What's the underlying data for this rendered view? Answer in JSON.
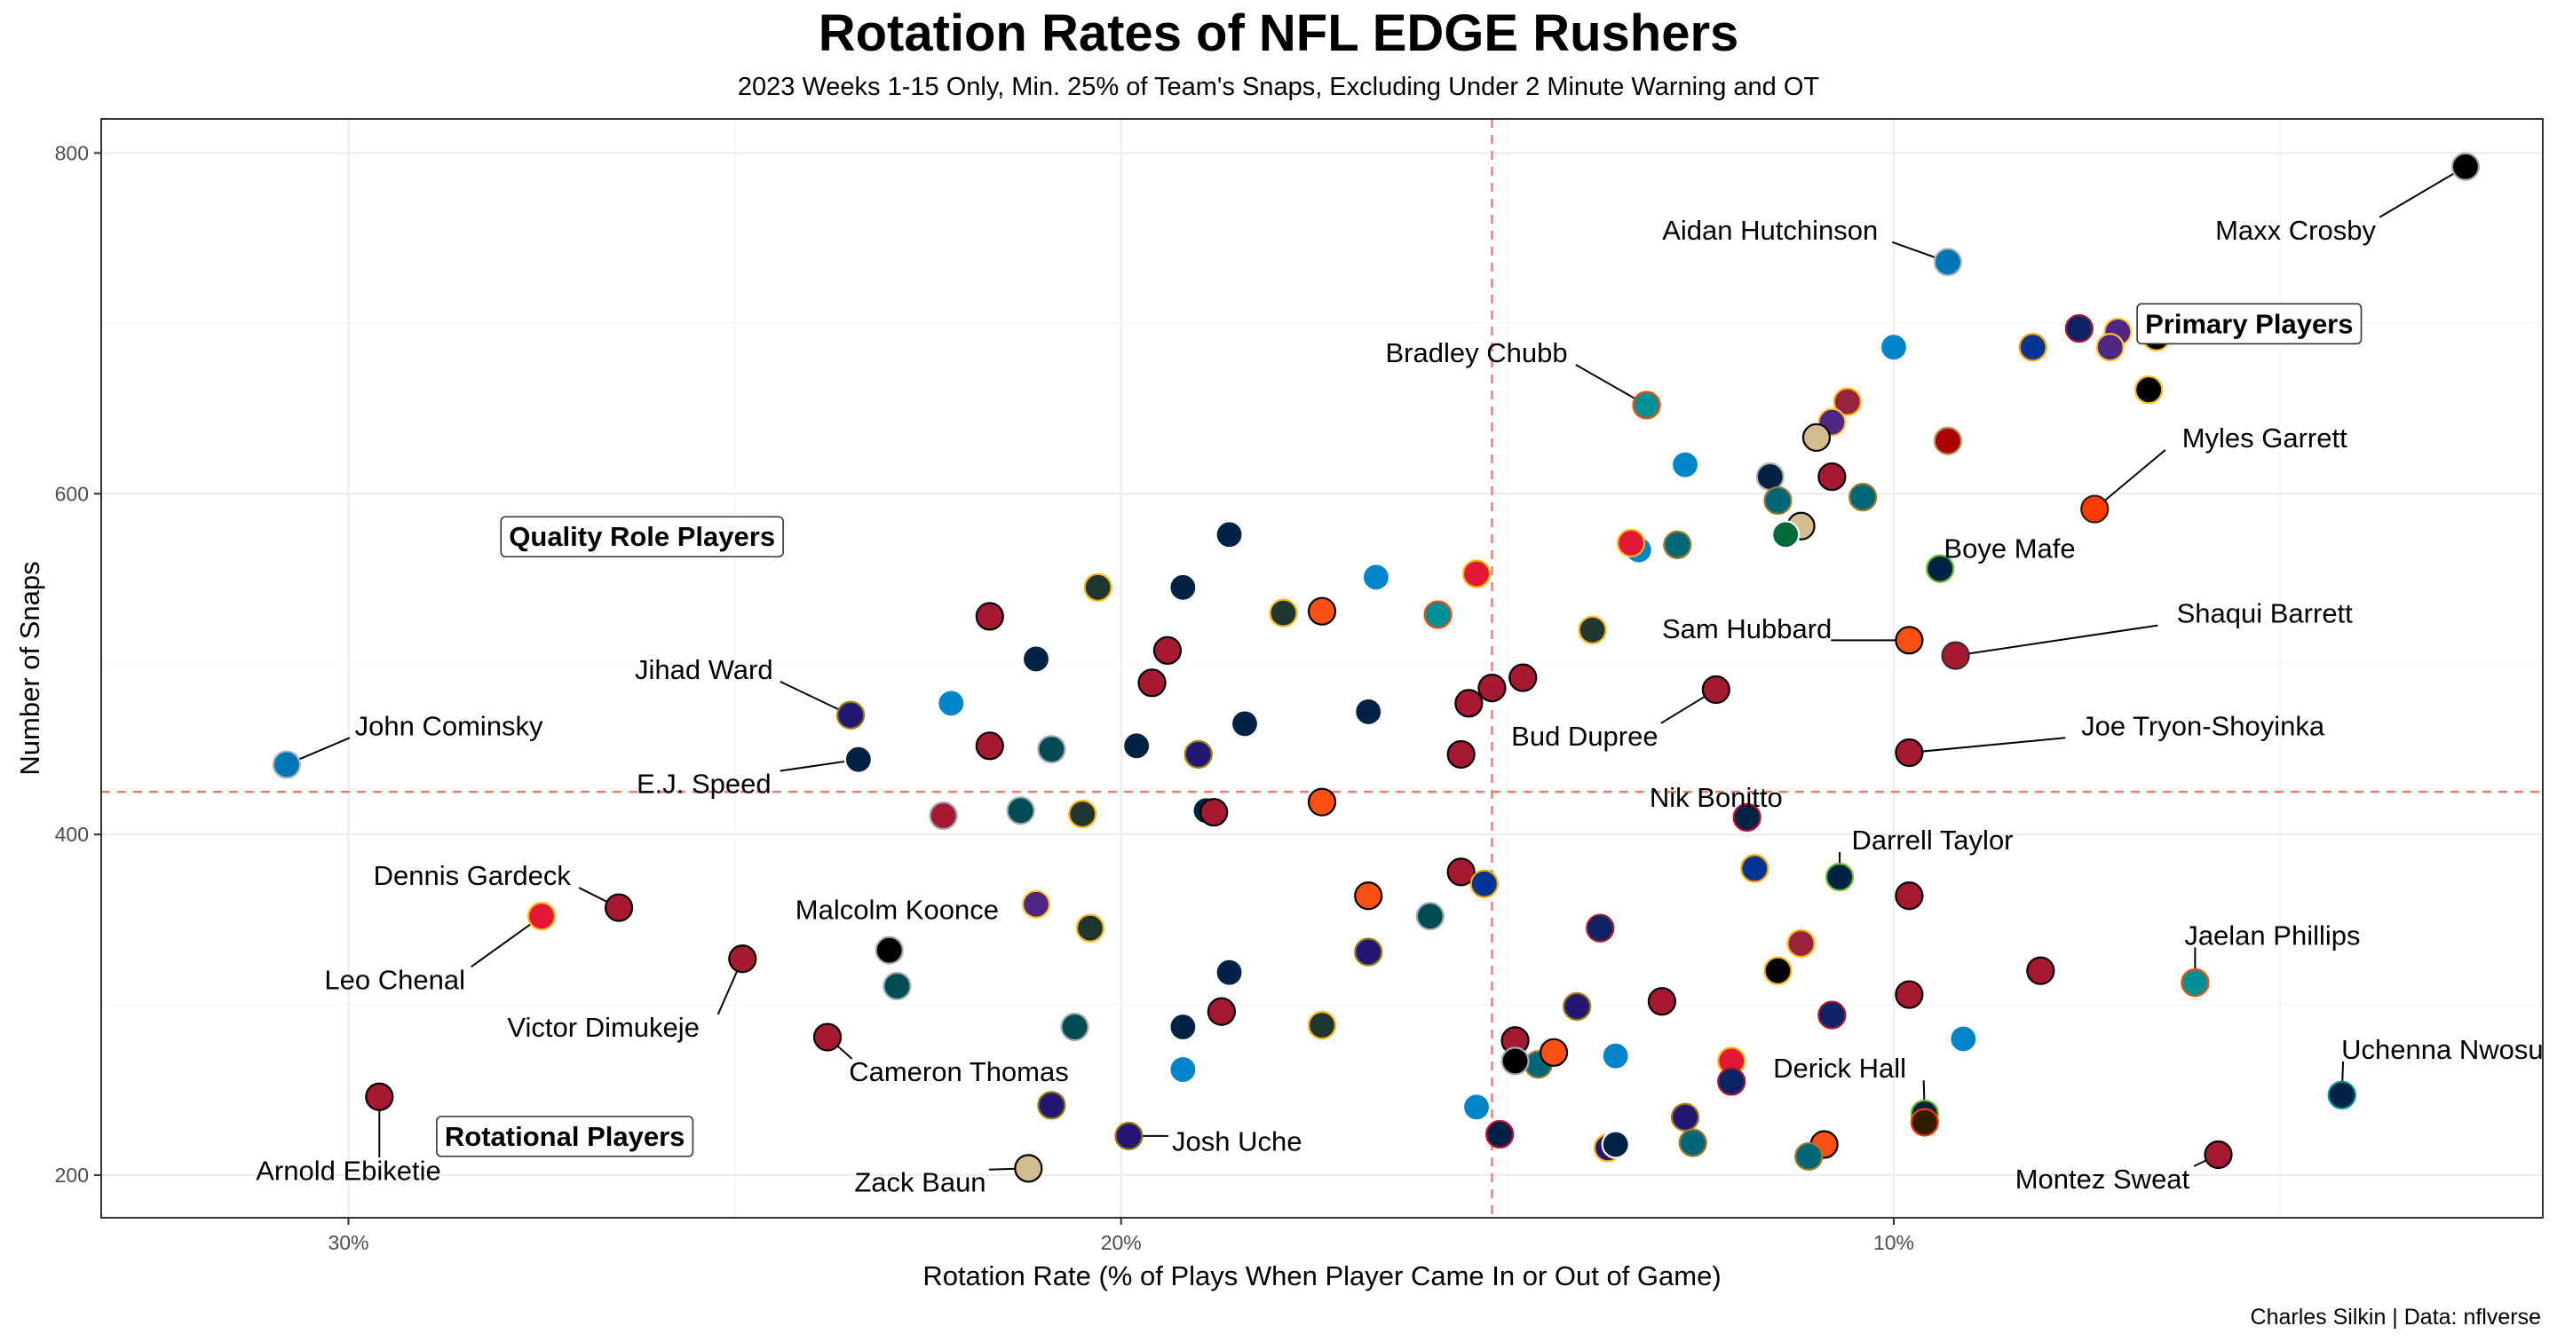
{
  "title": "Rotation Rates of NFL EDGE Rushers",
  "subtitle": "2023 Weeks 1-15 Only, Min. 25% of Team's Snaps, Excluding Under 2 Minute Warning and OT",
  "caption": "Charles Silkin | Data: nflverse",
  "chart_data": {
    "type": "scatter",
    "xlabel": "Rotation Rate (% of Plays When Player Came In or Out of Game)",
    "ylabel": "Number of Snaps",
    "x_reversed": true,
    "xlim": [
      33.2,
      1.6
    ],
    "ylim": [
      175,
      820
    ],
    "x_ticks": [
      {
        "value": 30,
        "label": "30%"
      },
      {
        "value": 20,
        "label": "20%"
      },
      {
        "value": 10,
        "label": "10%"
      }
    ],
    "y_ticks": [
      {
        "value": 200,
        "label": "200"
      },
      {
        "value": 400,
        "label": "400"
      },
      {
        "value": 600,
        "label": "600"
      },
      {
        "value": 800,
        "label": "800"
      }
    ],
    "reference_lines": {
      "x": 15.2,
      "y": 425,
      "color": "#f8766d",
      "style": "dashed"
    },
    "grid": true,
    "quadrant_labels": [
      {
        "text": "Primary Players",
        "x": 5.4,
        "y": 700
      },
      {
        "text": "Quality Role Players",
        "x": 26.2,
        "y": 575
      },
      {
        "text": "Rotational Players",
        "x": 27.2,
        "y": 223
      }
    ],
    "points": [
      {
        "x": 2.6,
        "y": 792,
        "fill": "#000000",
        "stroke": "#a5acaf",
        "label": "Maxx Crosby",
        "lx": 4.8,
        "ly": 755,
        "anchor": "middle"
      },
      {
        "x": 9.3,
        "y": 736,
        "fill": "#0076b6",
        "stroke": "#b0b7bc",
        "label": "Aidan Hutchinson",
        "lx": 11.6,
        "ly": 755,
        "anchor": "middle"
      },
      {
        "x": 13.2,
        "y": 652,
        "fill": "#008e97",
        "stroke": "#fc4c02",
        "label": "Bradley Chubb",
        "lx": 15.4,
        "ly": 683,
        "anchor": "middle"
      },
      {
        "x": 7.4,
        "y": 591,
        "fill": "#ff3c00",
        "stroke": "#311d00",
        "label": "Myles Garrett",
        "lx": 5.2,
        "ly": 633,
        "anchor": "middle"
      },
      {
        "x": 9.4,
        "y": 556,
        "fill": "#002244",
        "stroke": "#69be28",
        "label": "Boye Mafe",
        "lx": 8.5,
        "ly": 568,
        "anchor": "middle"
      },
      {
        "x": 9.8,
        "y": 514,
        "fill": "#fb4f14",
        "stroke": "#000000",
        "label": "Sam Hubbard",
        "lx": 11.9,
        "ly": 521,
        "anchor": "middle"
      },
      {
        "x": 9.2,
        "y": 505,
        "fill": "#a71930",
        "stroke": "#322f2b",
        "label": "Shaqui Barrett",
        "lx": 5.2,
        "ly": 530,
        "anchor": "middle"
      },
      {
        "x": 12.3,
        "y": 485,
        "fill": "#a71930",
        "stroke": "#000000",
        "label": "Bud Dupree",
        "lx": 14.0,
        "ly": 458,
        "anchor": "middle"
      },
      {
        "x": 9.8,
        "y": 448,
        "fill": "#a71930",
        "stroke": "#000000",
        "label": "Joe Tryon-Shoyinka",
        "lx": 6.0,
        "ly": 464,
        "anchor": "middle"
      },
      {
        "x": 11.9,
        "y": 410,
        "fill": "#002244",
        "stroke": "#c60c30",
        "label": "Nik Bonitto",
        "lx": 12.3,
        "ly": 422,
        "anchor": "middle"
      },
      {
        "x": 10.7,
        "y": 375,
        "fill": "#002244",
        "stroke": "#69be28",
        "label": "Darrell Taylor",
        "lx": 9.5,
        "ly": 397,
        "anchor": "middle"
      },
      {
        "x": 6.1,
        "y": 313,
        "fill": "#008e97",
        "stroke": "#fc4c02",
        "label": "Jaelan Phillips",
        "lx": 5.1,
        "ly": 341,
        "anchor": "middle"
      },
      {
        "x": 4.2,
        "y": 247,
        "fill": "#002244",
        "stroke": "#008e97",
        "label": "Uchenna Nwosu",
        "lx": 2.9,
        "ly": 274,
        "anchor": "middle"
      },
      {
        "x": 9.6,
        "y": 236,
        "fill": "#002244",
        "stroke": "#69be28",
        "label": "Derick Hall",
        "lx": 10.7,
        "ly": 263,
        "anchor": "middle"
      },
      {
        "x": 5.8,
        "y": 212,
        "fill": "#a71930",
        "stroke": "#000000",
        "label": "Montez Sweat",
        "lx": 7.3,
        "ly": 198,
        "anchor": "middle"
      },
      {
        "x": 30.8,
        "y": 441,
        "fill": "#0076b6",
        "stroke": "#b0b7bc",
        "label": "John Cominsky",
        "lx": 28.7,
        "ly": 464,
        "anchor": "middle"
      },
      {
        "x": 23.5,
        "y": 470,
        "fill": "#241773",
        "stroke": "#9e7c0c",
        "label": "Jihad Ward",
        "lx": 25.4,
        "ly": 497,
        "anchor": "middle"
      },
      {
        "x": 23.4,
        "y": 444,
        "fill": "#002244",
        "stroke": "#ffffff",
        "label": "E.J. Speed",
        "lx": 25.4,
        "ly": 430,
        "anchor": "middle"
      },
      {
        "x": 26.5,
        "y": 357,
        "fill": "#a71930",
        "stroke": "#000000",
        "label": "Dennis Gardeck",
        "lx": 28.4,
        "ly": 376,
        "anchor": "middle"
      },
      {
        "x": 27.5,
        "y": 352,
        "fill": "#e31837",
        "stroke": "#ffb612",
        "label": "Leo Chenal",
        "lx": 29.4,
        "ly": 315,
        "anchor": "middle"
      },
      {
        "x": 23.0,
        "y": 332,
        "fill": "#000000",
        "stroke": "#a5acaf",
        "label": "Malcolm Koonce",
        "lx": 22.9,
        "ly": 356,
        "anchor": "middle"
      },
      {
        "x": 24.9,
        "y": 327,
        "fill": "#a71930",
        "stroke": "#000000",
        "label": "Victor Dimukeje",
        "lx": 26.7,
        "ly": 287,
        "anchor": "middle"
      },
      {
        "x": 23.8,
        "y": 281,
        "fill": "#a71930",
        "stroke": "#000000",
        "label": "Cameron Thomas",
        "lx": 22.1,
        "ly": 261,
        "anchor": "middle"
      },
      {
        "x": 29.6,
        "y": 246,
        "fill": "#a71930",
        "stroke": "#000000",
        "label": "Arnold Ebiketie",
        "lx": 30.0,
        "ly": 203,
        "anchor": "middle"
      },
      {
        "x": 19.9,
        "y": 223,
        "fill": "#241773",
        "stroke": "#9e7c0c",
        "label": "Josh Uche",
        "lx": 18.5,
        "ly": 220,
        "anchor": "middle"
      },
      {
        "x": 21.2,
        "y": 204,
        "fill": "#d3bc8d",
        "stroke": "#000000",
        "label": "Zack Baun",
        "lx": 22.6,
        "ly": 196,
        "anchor": "middle"
      },
      {
        "x": 7.1,
        "y": 695,
        "fill": "#4f2683",
        "stroke": "#ffc62f"
      },
      {
        "x": 6.6,
        "y": 692,
        "fill": "#000000",
        "stroke": "#ffb612"
      },
      {
        "x": 7.2,
        "y": 686,
        "fill": "#4f2683",
        "stroke": "#ffc62f"
      },
      {
        "x": 7.6,
        "y": 697,
        "fill": "#0b2265",
        "stroke": "#a71930"
      },
      {
        "x": 8.2,
        "y": 686,
        "fill": "#003594",
        "stroke": "#ffa300"
      },
      {
        "x": 10.0,
        "y": 686,
        "fill": "#0085ca",
        "stroke": "#ffffff"
      },
      {
        "x": 6.7,
        "y": 661,
        "fill": "#000000",
        "stroke": "#ffb612"
      },
      {
        "x": 10.6,
        "y": 654,
        "fill": "#97233f",
        "stroke": "#ffb612"
      },
      {
        "x": 10.8,
        "y": 642,
        "fill": "#4f2683",
        "stroke": "#ffc62f"
      },
      {
        "x": 11.0,
        "y": 633,
        "fill": "#d3bc8d",
        "stroke": "#000000"
      },
      {
        "x": 9.3,
        "y": 631,
        "fill": "#aa0000",
        "stroke": "#b3995d"
      },
      {
        "x": 12.7,
        "y": 617,
        "fill": "#0085ca",
        "stroke": "#ffffff"
      },
      {
        "x": 11.6,
        "y": 610,
        "fill": "#002244",
        "stroke": "#b0b7bc"
      },
      {
        "x": 10.8,
        "y": 610,
        "fill": "#a71930",
        "stroke": "#000000"
      },
      {
        "x": 11.5,
        "y": 596,
        "fill": "#006778",
        "stroke": "#9f792c"
      },
      {
        "x": 10.4,
        "y": 598,
        "fill": "#006778",
        "stroke": "#9f792c"
      },
      {
        "x": 11.2,
        "y": 581,
        "fill": "#d3bc8d",
        "stroke": "#000000"
      },
      {
        "x": 11.4,
        "y": 576,
        "fill": "#046a38",
        "stroke": "#ffffff"
      },
      {
        "x": 12.8,
        "y": 570,
        "fill": "#006778",
        "stroke": "#9f792c"
      },
      {
        "x": 13.3,
        "y": 567,
        "fill": "#0085ca",
        "stroke": "#ffffff"
      },
      {
        "x": 13.4,
        "y": 571,
        "fill": "#e31837",
        "stroke": "#ffb612"
      },
      {
        "x": 18.6,
        "y": 576,
        "fill": "#002244",
        "stroke": "#ffffff"
      },
      {
        "x": 15.4,
        "y": 553,
        "fill": "#e31837",
        "stroke": "#ffb612"
      },
      {
        "x": 16.7,
        "y": 551,
        "fill": "#0085ca",
        "stroke": "#ffffff"
      },
      {
        "x": 19.2,
        "y": 545,
        "fill": "#002244",
        "stroke": "#ffffff"
      },
      {
        "x": 20.3,
        "y": 545,
        "fill": "#203731",
        "stroke": "#ffb612"
      },
      {
        "x": 15.9,
        "y": 529,
        "fill": "#008e97",
        "stroke": "#fc4c02"
      },
      {
        "x": 17.4,
        "y": 531,
        "fill": "#fb4f14",
        "stroke": "#000000"
      },
      {
        "x": 17.9,
        "y": 530,
        "fill": "#203731",
        "stroke": "#ffb612"
      },
      {
        "x": 21.7,
        "y": 528,
        "fill": "#a71930",
        "stroke": "#000000"
      },
      {
        "x": 13.9,
        "y": 520,
        "fill": "#203731",
        "stroke": "#ffb612"
      },
      {
        "x": 21.1,
        "y": 503,
        "fill": "#002244",
        "stroke": "#ffffff"
      },
      {
        "x": 19.4,
        "y": 508,
        "fill": "#a71930",
        "stroke": "#000000"
      },
      {
        "x": 19.6,
        "y": 489,
        "fill": "#a71930",
        "stroke": "#000000"
      },
      {
        "x": 14.8,
        "y": 492,
        "fill": "#a71930",
        "stroke": "#000000"
      },
      {
        "x": 15.2,
        "y": 486,
        "fill": "#a71930",
        "stroke": "#000000"
      },
      {
        "x": 15.5,
        "y": 477,
        "fill": "#a71930",
        "stroke": "#000000"
      },
      {
        "x": 22.2,
        "y": 477,
        "fill": "#0085ca",
        "stroke": "#ffffff"
      },
      {
        "x": 16.8,
        "y": 472,
        "fill": "#002244",
        "stroke": "#ffffff"
      },
      {
        "x": 18.4,
        "y": 465,
        "fill": "#002244",
        "stroke": "#ffffff"
      },
      {
        "x": 21.7,
        "y": 452,
        "fill": "#a71930",
        "stroke": "#000000"
      },
      {
        "x": 20.9,
        "y": 450,
        "fill": "#004c54",
        "stroke": "#a5acaf"
      },
      {
        "x": 19.8,
        "y": 452,
        "fill": "#002244",
        "stroke": "#ffffff"
      },
      {
        "x": 19.0,
        "y": 447,
        "fill": "#241773",
        "stroke": "#9e7c0c"
      },
      {
        "x": 15.6,
        "y": 447,
        "fill": "#a71930",
        "stroke": "#000000"
      },
      {
        "x": 22.3,
        "y": 411,
        "fill": "#a71930",
        "stroke": "#a5acaf"
      },
      {
        "x": 21.3,
        "y": 414,
        "fill": "#004c54",
        "stroke": "#a5acaf"
      },
      {
        "x": 20.5,
        "y": 412,
        "fill": "#203731",
        "stroke": "#ffb612"
      },
      {
        "x": 18.9,
        "y": 414,
        "fill": "#002244",
        "stroke": "#ffffff"
      },
      {
        "x": 18.8,
        "y": 413,
        "fill": "#a71930",
        "stroke": "#000000"
      },
      {
        "x": 17.4,
        "y": 419,
        "fill": "#fb4f14",
        "stroke": "#000000"
      },
      {
        "x": 15.6,
        "y": 378,
        "fill": "#a71930",
        "stroke": "#000000"
      },
      {
        "x": 15.3,
        "y": 371,
        "fill": "#003594",
        "stroke": "#ffa300"
      },
      {
        "x": 16.8,
        "y": 364,
        "fill": "#fb4f14",
        "stroke": "#000000"
      },
      {
        "x": 21.1,
        "y": 359,
        "fill": "#4f2683",
        "stroke": "#ffc62f"
      },
      {
        "x": 16.0,
        "y": 352,
        "fill": "#004c54",
        "stroke": "#a5acaf"
      },
      {
        "x": 20.4,
        "y": 345,
        "fill": "#203731",
        "stroke": "#ffb612"
      },
      {
        "x": 13.8,
        "y": 345,
        "fill": "#0b2265",
        "stroke": "#a71930"
      },
      {
        "x": 16.8,
        "y": 331,
        "fill": "#241773",
        "stroke": "#9e7c0c"
      },
      {
        "x": 9.8,
        "y": 364,
        "fill": "#a71930",
        "stroke": "#000000"
      },
      {
        "x": 11.8,
        "y": 380,
        "fill": "#003594",
        "stroke": "#ffa300"
      },
      {
        "x": 11.2,
        "y": 336,
        "fill": "#97233f",
        "stroke": "#ffb612"
      },
      {
        "x": 11.5,
        "y": 320,
        "fill": "#000000",
        "stroke": "#ffb612"
      },
      {
        "x": 8.1,
        "y": 320,
        "fill": "#a71930",
        "stroke": "#000000"
      },
      {
        "x": 9.8,
        "y": 306,
        "fill": "#a71930",
        "stroke": "#000000"
      },
      {
        "x": 13.0,
        "y": 302,
        "fill": "#a71930",
        "stroke": "#000000"
      },
      {
        "x": 14.1,
        "y": 299,
        "fill": "#241773",
        "stroke": "#9e7c0c"
      },
      {
        "x": 10.8,
        "y": 294,
        "fill": "#0b2265",
        "stroke": "#a71930"
      },
      {
        "x": 22.9,
        "y": 311,
        "fill": "#004c54",
        "stroke": "#a5acaf"
      },
      {
        "x": 18.6,
        "y": 319,
        "fill": "#002244",
        "stroke": "#ffffff"
      },
      {
        "x": 18.7,
        "y": 296,
        "fill": "#a71930",
        "stroke": "#000000"
      },
      {
        "x": 20.6,
        "y": 287,
        "fill": "#004c54",
        "stroke": "#a5acaf"
      },
      {
        "x": 19.2,
        "y": 287,
        "fill": "#002244",
        "stroke": "#ffffff"
      },
      {
        "x": 17.4,
        "y": 288,
        "fill": "#203731",
        "stroke": "#ffb612"
      },
      {
        "x": 14.9,
        "y": 279,
        "fill": "#a71930",
        "stroke": "#000000"
      },
      {
        "x": 9.1,
        "y": 280,
        "fill": "#0085ca",
        "stroke": "#ffffff"
      },
      {
        "x": 14.6,
        "y": 265,
        "fill": "#006778",
        "stroke": "#9f792c"
      },
      {
        "x": 14.9,
        "y": 267,
        "fill": "#000000",
        "stroke": "#a5acaf"
      },
      {
        "x": 14.4,
        "y": 272,
        "fill": "#fb4f14",
        "stroke": "#000000"
      },
      {
        "x": 13.6,
        "y": 270,
        "fill": "#0085ca",
        "stroke": "#ffffff"
      },
      {
        "x": 12.1,
        "y": 267,
        "fill": "#e31837",
        "stroke": "#ffb612"
      },
      {
        "x": 12.1,
        "y": 255,
        "fill": "#0b2265",
        "stroke": "#a71930"
      },
      {
        "x": 19.2,
        "y": 262,
        "fill": "#0085ca",
        "stroke": "#ffffff"
      },
      {
        "x": 20.9,
        "y": 241,
        "fill": "#241773",
        "stroke": "#9e7c0c"
      },
      {
        "x": 15.4,
        "y": 240,
        "fill": "#0085ca",
        "stroke": "#ffffff"
      },
      {
        "x": 12.7,
        "y": 234,
        "fill": "#241773",
        "stroke": "#9e7c0c"
      },
      {
        "x": 9.6,
        "y": 231,
        "fill": "#311d00",
        "stroke": "#ff3c00"
      },
      {
        "x": 15.1,
        "y": 224,
        "fill": "#002244",
        "stroke": "#c60c30"
      },
      {
        "x": 13.7,
        "y": 216,
        "fill": "#241773",
        "stroke": "#ffb612"
      },
      {
        "x": 13.6,
        "y": 218,
        "fill": "#002244",
        "stroke": "#ffffff"
      },
      {
        "x": 12.6,
        "y": 219,
        "fill": "#006778",
        "stroke": "#9f792c"
      },
      {
        "x": 10.9,
        "y": 218,
        "fill": "#fb4f14",
        "stroke": "#000000"
      },
      {
        "x": 11.1,
        "y": 211,
        "fill": "#006778",
        "stroke": "#9f792c"
      }
    ]
  }
}
